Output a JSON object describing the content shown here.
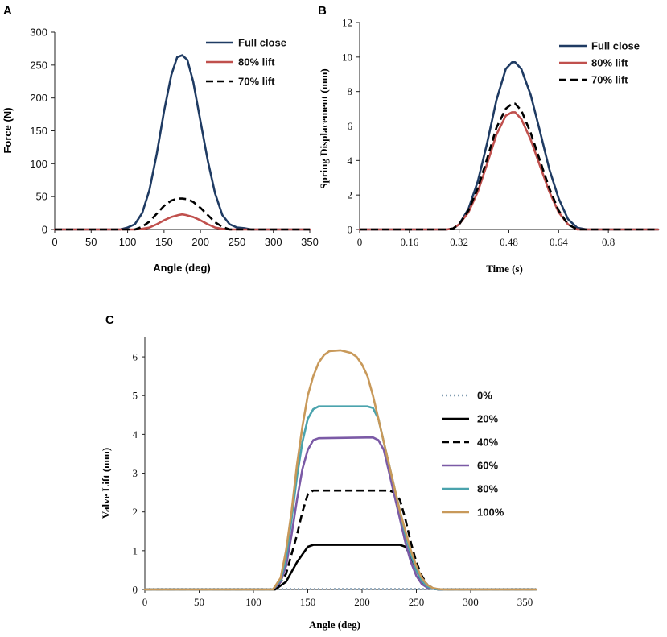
{
  "chart_data": [
    {
      "panel": "A",
      "type": "line",
      "xlabel": "Angle (deg)",
      "ylabel": "Force (N)",
      "xlim": [
        0,
        350
      ],
      "ylim": [
        0,
        300
      ],
      "xticks": [
        0,
        50,
        100,
        150,
        200,
        250,
        300,
        350
      ],
      "yticks": [
        0,
        50,
        100,
        150,
        200,
        250,
        300
      ],
      "legend_position": "top-right",
      "series": [
        {
          "name": "Full close",
          "color": "#1f3b63",
          "dash": "solid",
          "x": [
            0,
            90,
            100,
            110,
            120,
            130,
            140,
            150,
            160,
            168,
            175,
            182,
            190,
            200,
            210,
            220,
            230,
            240,
            250,
            260,
            270,
            350
          ],
          "y": [
            0,
            0,
            3,
            8,
            25,
            60,
            115,
            180,
            235,
            262,
            265,
            258,
            225,
            165,
            105,
            55,
            22,
            8,
            3,
            2,
            0,
            0
          ]
        },
        {
          "name": "80% lift",
          "color": "#c0504d",
          "dash": "solid",
          "x": [
            0,
            110,
            120,
            130,
            140,
            150,
            160,
            170,
            175,
            180,
            190,
            200,
            210,
            220,
            230,
            240,
            350
          ],
          "y": [
            0,
            0,
            1,
            3,
            8,
            14,
            19,
            22,
            23,
            22,
            19,
            14,
            8,
            3,
            1,
            0,
            0
          ]
        },
        {
          "name": "70% lift",
          "color": "#000000",
          "dash": "dashed",
          "x": [
            0,
            110,
            120,
            130,
            140,
            150,
            160,
            168,
            175,
            182,
            190,
            200,
            210,
            220,
            230,
            240,
            350
          ],
          "y": [
            0,
            0,
            4,
            12,
            24,
            36,
            44,
            47,
            47,
            46,
            42,
            33,
            22,
            11,
            4,
            0,
            0
          ]
        }
      ]
    },
    {
      "panel": "B",
      "type": "line",
      "xlabel": "Time (s)",
      "ylabel": "Spring Displacement (mm)",
      "xlim": [
        0,
        0.96
      ],
      "ylim": [
        0,
        12
      ],
      "xticks": [
        0,
        0.16,
        0.32,
        0.48,
        0.64,
        0.8
      ],
      "yticks": [
        0,
        2,
        4,
        6,
        8,
        10,
        12
      ],
      "legend_position": "top-right",
      "series": [
        {
          "name": "Full close",
          "color": "#1f3b63",
          "dash": "solid",
          "x": [
            0,
            0.28,
            0.3,
            0.32,
            0.35,
            0.38,
            0.41,
            0.44,
            0.47,
            0.49,
            0.5,
            0.52,
            0.55,
            0.58,
            0.61,
            0.64,
            0.67,
            0.7,
            0.73,
            0.96
          ],
          "y": [
            0,
            0,
            0.05,
            0.3,
            1.2,
            2.8,
            5.0,
            7.5,
            9.3,
            9.7,
            9.7,
            9.3,
            7.8,
            5.7,
            3.5,
            1.8,
            0.6,
            0.1,
            0,
            0
          ]
        },
        {
          "name": "80% lift",
          "color": "#c0504d",
          "dash": "solid",
          "x": [
            0,
            0.28,
            0.3,
            0.32,
            0.35,
            0.38,
            0.41,
            0.44,
            0.47,
            0.49,
            0.5,
            0.52,
            0.55,
            0.58,
            0.61,
            0.64,
            0.67,
            0.7,
            0.96
          ],
          "y": [
            0,
            0,
            0.05,
            0.3,
            1.0,
            2.2,
            3.8,
            5.5,
            6.6,
            6.8,
            6.8,
            6.4,
            5.2,
            3.7,
            2.2,
            1.0,
            0.3,
            0,
            0
          ]
        },
        {
          "name": "70% lift",
          "color": "#000000",
          "dash": "dashed",
          "x": [
            0,
            0.28,
            0.3,
            0.32,
            0.35,
            0.38,
            0.41,
            0.44,
            0.47,
            0.49,
            0.5,
            0.52,
            0.55,
            0.58,
            0.61,
            0.64,
            0.67,
            0.7,
            0.96
          ],
          "y": [
            0,
            0,
            0.05,
            0.3,
            1.1,
            2.4,
            4.1,
            5.9,
            7.0,
            7.3,
            7.3,
            6.9,
            5.6,
            4.0,
            2.4,
            1.1,
            0.3,
            0,
            0
          ]
        }
      ]
    },
    {
      "panel": "C",
      "type": "line",
      "xlabel": "Angle (deg)",
      "ylabel": "Valve Lift (mm)",
      "xlim": [
        0,
        360
      ],
      "ylim": [
        0,
        6.5
      ],
      "xticks": [
        0,
        50,
        100,
        150,
        200,
        250,
        300,
        350
      ],
      "yticks": [
        0,
        1,
        2,
        3,
        4,
        5,
        6
      ],
      "legend_position": "right",
      "series": [
        {
          "name": "0%",
          "color": "#7f9ab0",
          "dash": "dotted",
          "x": [
            0,
            360
          ],
          "y": [
            0.01,
            0.01
          ]
        },
        {
          "name": "20%",
          "color": "#000000",
          "dash": "solid",
          "x": [
            0,
            120,
            130,
            140,
            150,
            155,
            160,
            235,
            240,
            245,
            250,
            255,
            260,
            265,
            270,
            360
          ],
          "y": [
            0,
            0,
            0.2,
            0.7,
            1.1,
            1.15,
            1.15,
            1.15,
            1.1,
            0.85,
            0.5,
            0.2,
            0.06,
            0.02,
            0,
            0
          ]
        },
        {
          "name": "40%",
          "color": "#000000",
          "dash": "dashed",
          "x": [
            0,
            120,
            130,
            140,
            145,
            150,
            155,
            160,
            225,
            230,
            235,
            240,
            245,
            250,
            255,
            260,
            265,
            270,
            360
          ],
          "y": [
            0,
            0,
            0.4,
            1.4,
            2.0,
            2.45,
            2.55,
            2.55,
            2.55,
            2.5,
            2.3,
            1.8,
            1.2,
            0.7,
            0.35,
            0.12,
            0.04,
            0,
            0
          ]
        },
        {
          "name": "60%",
          "color": "#7b5aa6",
          "dash": "solid",
          "x": [
            0,
            118,
            125,
            130,
            135,
            140,
            145,
            150,
            155,
            160,
            210,
            215,
            220,
            225,
            230,
            235,
            240,
            245,
            250,
            255,
            260,
            265,
            270,
            360
          ],
          "y": [
            0,
            0,
            0.2,
            0.6,
            1.4,
            2.3,
            3.1,
            3.6,
            3.85,
            3.9,
            3.92,
            3.85,
            3.6,
            3.0,
            2.4,
            1.8,
            1.2,
            0.7,
            0.35,
            0.14,
            0.05,
            0.02,
            0,
            0
          ]
        },
        {
          "name": "80%",
          "color": "#4aa3ad",
          "dash": "solid",
          "x": [
            0,
            118,
            125,
            130,
            135,
            140,
            145,
            150,
            155,
            160,
            205,
            210,
            215,
            220,
            225,
            230,
            235,
            240,
            245,
            250,
            255,
            260,
            265,
            270,
            360
          ],
          "y": [
            0,
            0,
            0.25,
            0.8,
            1.8,
            2.9,
            3.8,
            4.4,
            4.65,
            4.72,
            4.72,
            4.68,
            4.4,
            3.8,
            3.2,
            2.6,
            2.0,
            1.4,
            0.9,
            0.5,
            0.22,
            0.08,
            0.02,
            0,
            0
          ]
        },
        {
          "name": "100%",
          "color": "#c8995a",
          "dash": "solid",
          "x": [
            0,
            118,
            125,
            130,
            135,
            140,
            145,
            150,
            155,
            160,
            165,
            170,
            180,
            190,
            195,
            200,
            205,
            210,
            215,
            220,
            225,
            230,
            235,
            240,
            245,
            250,
            255,
            260,
            265,
            270,
            275,
            360
          ],
          "y": [
            0,
            0,
            0.3,
            1.0,
            2.0,
            3.2,
            4.2,
            5.0,
            5.5,
            5.85,
            6.05,
            6.15,
            6.17,
            6.1,
            6.0,
            5.8,
            5.5,
            5.0,
            4.4,
            3.8,
            3.2,
            2.6,
            2.0,
            1.5,
            1.0,
            0.6,
            0.3,
            0.12,
            0.04,
            0.01,
            0,
            0
          ]
        }
      ]
    }
  ]
}
